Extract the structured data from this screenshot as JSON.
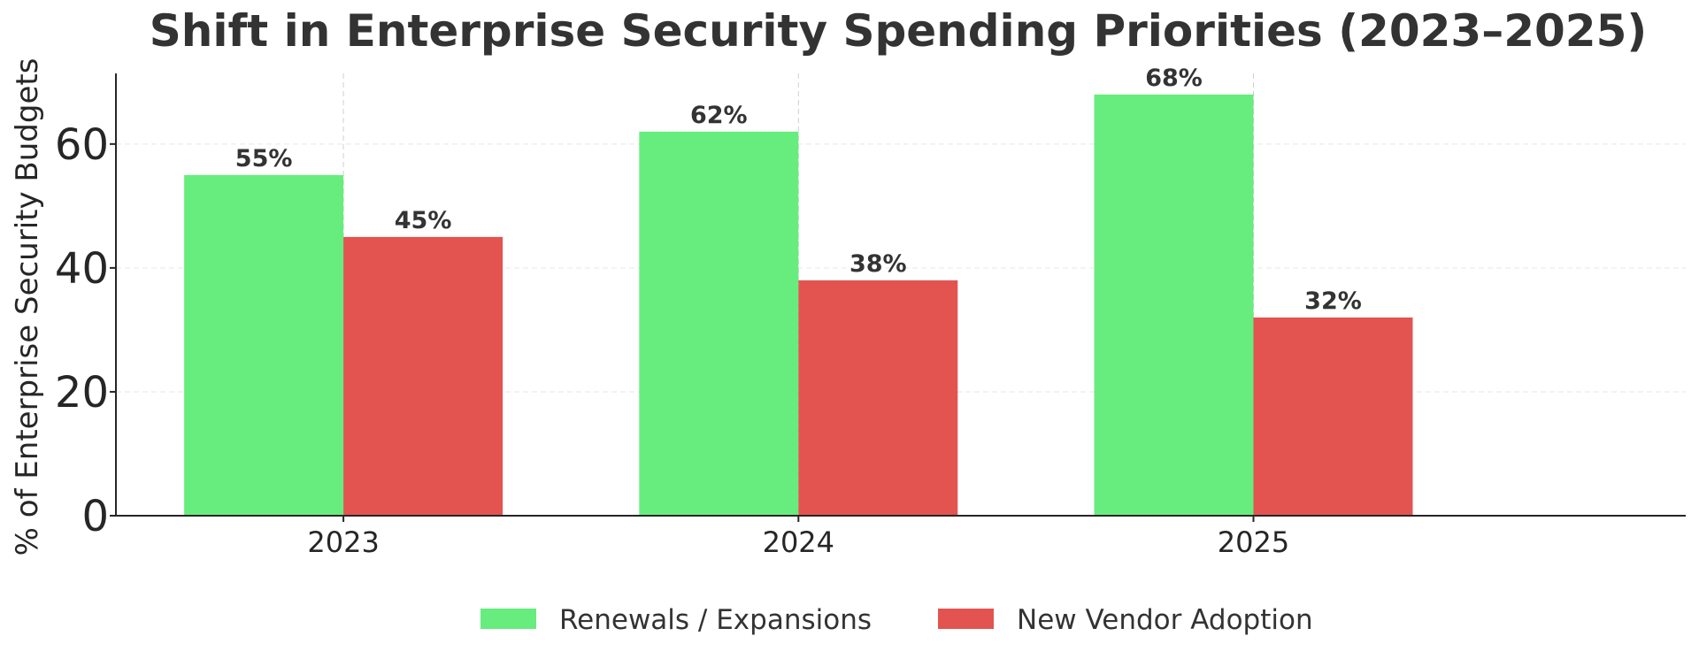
{
  "chart_data": {
    "type": "bar",
    "title": "Shift in Enterprise Security Spending Priorities (2023–2025)",
    "xlabel": "",
    "ylabel": "% of Enterprise Security Budgets",
    "categories": [
      "2023",
      "2024",
      "2025"
    ],
    "series": [
      {
        "name": "Renewals / Expansions",
        "values": [
          55,
          62,
          68
        ],
        "labels": [
          "55%",
          "62%",
          "68%"
        ],
        "color": "#66ed7d"
      },
      {
        "name": "New Vendor Adoption",
        "values": [
          45,
          38,
          32
        ],
        "labels": [
          "45%",
          "38%",
          "32%"
        ],
        "color": "#e35350"
      }
    ],
    "ylim": [
      0,
      71.4
    ],
    "yticks": [
      0,
      20,
      40,
      60
    ],
    "grid": true,
    "legend_position": "bottom-center"
  }
}
